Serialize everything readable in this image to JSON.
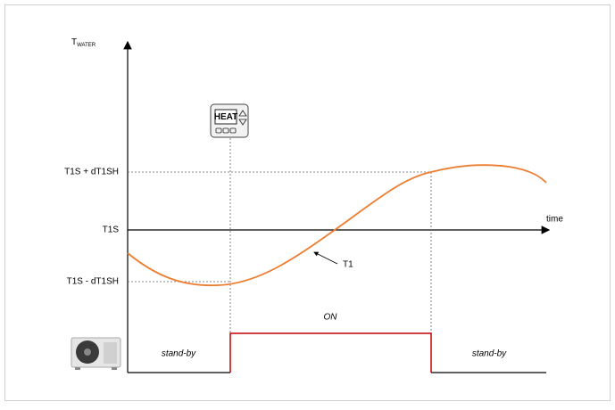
{
  "axis": {
    "y_label": "T",
    "y_label_sub": "WATER",
    "x_label": "time"
  },
  "levels": [
    "T1S + dT1SH",
    "T1S",
    "T1S - dT1SH"
  ],
  "curve_label": "T1",
  "controller": {
    "button": "HEAT"
  },
  "states": [
    "stand-by",
    "ON",
    "stand-by"
  ]
}
